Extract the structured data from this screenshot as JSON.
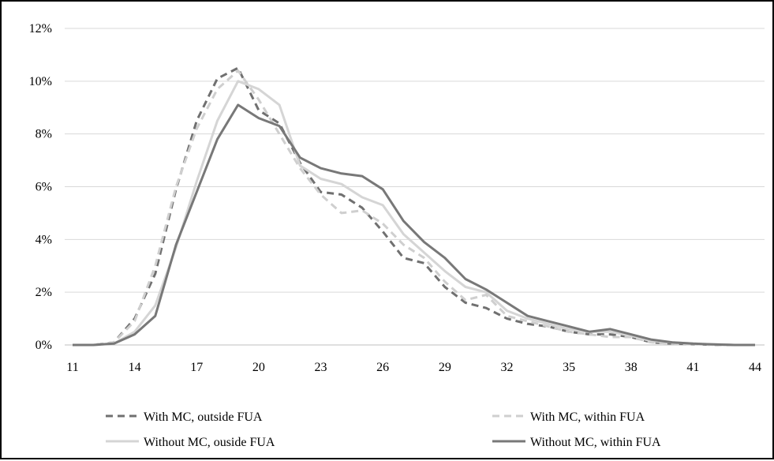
{
  "chart_data": {
    "type": "line",
    "x": [
      11,
      12,
      13,
      14,
      15,
      16,
      17,
      18,
      19,
      20,
      21,
      22,
      23,
      24,
      25,
      26,
      27,
      28,
      29,
      30,
      31,
      32,
      33,
      34,
      35,
      36,
      37,
      38,
      39,
      40,
      41,
      42,
      43,
      44
    ],
    "ylim": [
      0,
      12
    ],
    "y_tick_values": [
      0,
      2,
      4,
      6,
      8,
      10,
      12
    ],
    "y_tick_labels": [
      "0%",
      "2%",
      "4%",
      "6%",
      "8%",
      "10%",
      "12%"
    ],
    "x_tick_values": [
      11,
      14,
      17,
      20,
      23,
      26,
      29,
      32,
      35,
      38,
      41,
      44
    ],
    "x_tick_labels": [
      "11",
      "14",
      "17",
      "20",
      "23",
      "26",
      "29",
      "32",
      "35",
      "38",
      "41",
      "44"
    ],
    "grid": "horizontal",
    "legend_position": "bottom",
    "series": [
      {
        "name": "With MC, outside FUA",
        "color": "#707070",
        "dash": "dashed",
        "values": [
          0,
          0,
          0.1,
          1.0,
          2.7,
          5.9,
          8.5,
          10.1,
          10.5,
          8.9,
          8.4,
          6.9,
          5.8,
          5.7,
          5.2,
          4.3,
          3.3,
          3.1,
          2.2,
          1.6,
          1.4,
          1.0,
          0.8,
          0.7,
          0.5,
          0.4,
          0.4,
          0.3,
          0.1,
          0.05,
          0.03,
          0.01,
          0,
          0
        ]
      },
      {
        "name": "With MC, within FUA",
        "color": "#cfcfcf",
        "dash": "dashed",
        "values": [
          0,
          0,
          0.1,
          0.9,
          3.0,
          6.0,
          8.2,
          9.7,
          10.4,
          9.3,
          8.0,
          6.7,
          5.7,
          5.0,
          5.1,
          4.6,
          3.8,
          3.3,
          2.4,
          1.7,
          1.9,
          1.1,
          0.9,
          0.7,
          0.5,
          0.4,
          0.3,
          0.3,
          0.1,
          0.05,
          0.03,
          0.01,
          0,
          0
        ]
      },
      {
        "name": "Without MC, ouside FUA",
        "color": "#d5d5d5",
        "dash": "solid",
        "values": [
          0,
          0,
          0.05,
          0.5,
          1.5,
          3.7,
          6.2,
          8.5,
          10.0,
          9.7,
          9.1,
          6.8,
          6.3,
          6.1,
          5.6,
          5.3,
          4.2,
          3.5,
          2.8,
          2.2,
          2.0,
          1.3,
          1.0,
          0.8,
          0.6,
          0.5,
          0.5,
          0.35,
          0.15,
          0.1,
          0.05,
          0.02,
          0,
          0
        ]
      },
      {
        "name": "Without MC, within FUA",
        "color": "#787878",
        "dash": "solid",
        "values": [
          0,
          0,
          0.05,
          0.4,
          1.1,
          3.8,
          5.8,
          7.8,
          9.1,
          8.6,
          8.3,
          7.1,
          6.7,
          6.5,
          6.4,
          5.9,
          4.7,
          3.9,
          3.3,
          2.5,
          2.1,
          1.6,
          1.1,
          0.9,
          0.7,
          0.5,
          0.6,
          0.4,
          0.2,
          0.1,
          0.05,
          0.02,
          0,
          0
        ]
      }
    ]
  }
}
